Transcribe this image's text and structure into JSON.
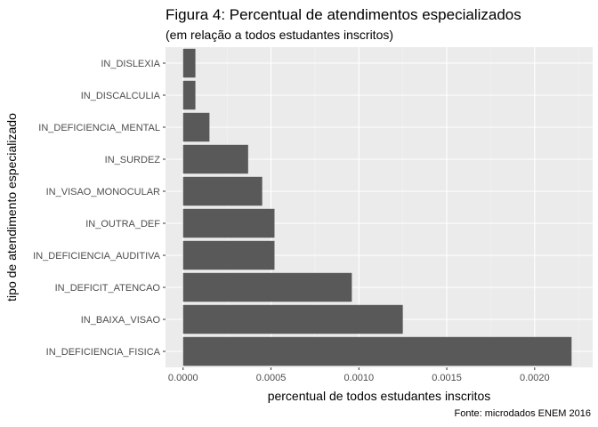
{
  "chart_data": {
    "type": "bar",
    "orientation": "horizontal",
    "title": "Figura 4: Percentual de atendimentos especializados",
    "subtitle": "(em relação a todos estudantes inscritos)",
    "caption": "Fonte: microdados ENEM 2016",
    "xlabel": "percentual de todos estudantes inscritos",
    "ylabel": "tipo de atendimento especializado",
    "categories": [
      "IN_DISLEXIA",
      "IN_DISCALCULIA",
      "IN_DEFICIENCIA_MENTAL",
      "IN_SURDEZ",
      "IN_VISAO_MONOCULAR",
      "IN_OUTRA_DEF",
      "IN_DEFICIENCIA_AUDITIVA",
      "IN_DEFICIT_ATENCAO",
      "IN_BAIXA_VISAO",
      "IN_DEFICIENCIA_FISICA"
    ],
    "values": [
      7e-05,
      7e-05,
      0.00015,
      0.00037,
      0.00045,
      0.00052,
      0.00052,
      0.00096,
      0.00125,
      0.00221
    ],
    "xlim": [
      -0.0001,
      0.00233
    ],
    "xticks": [
      0,
      0.0005,
      0.001,
      0.0015,
      0.002
    ],
    "xtick_labels": [
      "0.0000",
      "0.0005",
      "0.0010",
      "0.0015",
      "0.0020"
    ],
    "bar_color": "#595959",
    "panel_background": "#ebebeb",
    "grid": true,
    "legend": "none"
  }
}
